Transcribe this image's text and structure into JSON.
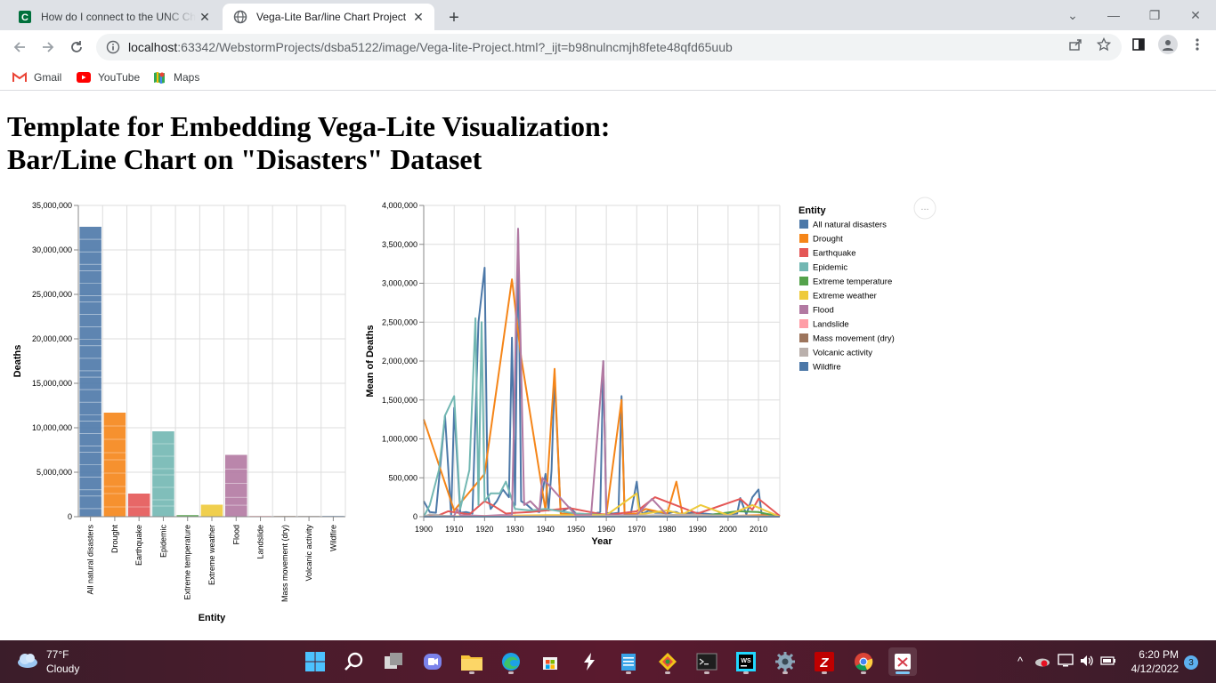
{
  "browser": {
    "tabs": [
      {
        "title": "How do I connect to the UNC Charlotte",
        "active": false
      },
      {
        "title": "Vega-Lite Bar/line Chart Project",
        "active": true
      }
    ],
    "url_host": "localhost",
    "url_rest": ":63342/WebstormProjects/dsba5122/image/Vega-lite-Project.html?_ijt=b98nulncmjh8fete48qfd65uub",
    "bookmarks": [
      "Gmail",
      "YouTube",
      "Maps"
    ]
  },
  "page": {
    "title_line1": "Template for Embedding Vega-Lite Visualization:",
    "title_line2": "Bar/Line Chart on \"Disasters\" Dataset",
    "actions_label": "..."
  },
  "colors": {
    "All natural disasters": "#4c78a8",
    "Drought": "#f58518",
    "Earthquake": "#e45756",
    "Epidemic": "#72b7b2",
    "Extreme temperature": "#54a24b",
    "Extreme weather": "#eeca3b",
    "Flood": "#b279a2",
    "Landslide": "#ff9da6",
    "Mass movement (dry)": "#9d755d",
    "Volcanic activity": "#bab0ac",
    "Wildfire": "#4c78a8"
  },
  "chart_data": [
    {
      "type": "bar",
      "title": "",
      "xlabel": "Entity",
      "ylabel": "Deaths",
      "ylim": [
        0,
        35000000
      ],
      "yticks": [
        "0",
        "5,000,000",
        "10,000,000",
        "15,000,000",
        "20,000,000",
        "25,000,000",
        "30,000,000",
        "35,000,000"
      ],
      "categories": [
        "All natural disasters",
        "Drought",
        "Earthquake",
        "Epidemic",
        "Extreme temperature",
        "Extreme weather",
        "Flood",
        "Landslide",
        "Mass movement (dry)",
        "Volcanic activity",
        "Wildfire"
      ],
      "values": [
        32600000,
        11700000,
        2600000,
        9600000,
        180000,
        1350000,
        6950000,
        60000,
        5000,
        95000,
        4000
      ],
      "grid": true
    },
    {
      "type": "line",
      "title": "",
      "xlabel": "Year",
      "ylabel": "Mean of Deaths",
      "xlim": [
        1900,
        2017
      ],
      "ylim": [
        0,
        4000000
      ],
      "xticks": [
        "1900",
        "1910",
        "1920",
        "1930",
        "1940",
        "1950",
        "1960",
        "1970",
        "1980",
        "1990",
        "2000",
        "2010"
      ],
      "yticks": [
        "0",
        "500,000",
        "1,000,000",
        "1,500,000",
        "2,000,000",
        "2,500,000",
        "3,000,000",
        "3,500,000",
        "4,000,000"
      ],
      "legend_title": "Entity",
      "legend_position": "right",
      "grid": true,
      "series": [
        {
          "name": "All natural disasters",
          "x": [
            1900,
            1902,
            1904,
            1907,
            1909,
            1910,
            1912,
            1914,
            1916,
            1918,
            1920,
            1921,
            1922,
            1924,
            1926,
            1928,
            1929,
            1930,
            1931,
            1932,
            1934,
            1936,
            1938,
            1940,
            1941,
            1942,
            1943,
            1945,
            1948,
            1950,
            1955,
            1958,
            1959,
            1960,
            1962,
            1964,
            1965,
            1966,
            1968,
            1970,
            1971,
            1972,
            1974,
            1976,
            1978,
            1980,
            1982,
            1983,
            1984,
            1986,
            1988,
            1990,
            1992,
            1995,
            1998,
            2000,
            2003,
            2004,
            2006,
            2008,
            2010,
            2011,
            2013,
            2015,
            2017
          ],
          "y": [
            200000,
            60000,
            50000,
            1300000,
            20000,
            1400000,
            50000,
            60000,
            40000,
            2500000,
            3200000,
            300000,
            100000,
            200000,
            350000,
            250000,
            2300000,
            150000,
            3700000,
            200000,
            150000,
            80000,
            60000,
            550000,
            80000,
            600000,
            1800000,
            60000,
            120000,
            40000,
            30000,
            60000,
            2000000,
            50000,
            40000,
            50000,
            1550000,
            40000,
            30000,
            450000,
            100000,
            40000,
            80000,
            50000,
            50000,
            40000,
            60000,
            60000,
            40000,
            40000,
            50000,
            50000,
            40000,
            30000,
            40000,
            30000,
            40000,
            240000,
            30000,
            250000,
            350000,
            40000,
            30000,
            30000,
            10000
          ]
        },
        {
          "name": "Drought",
          "x": [
            1900,
            1910,
            1920,
            1929,
            1932,
            1940,
            1943,
            1945,
            1960,
            1965,
            1966,
            1970,
            1973,
            1980,
            1983,
            1985,
            2000,
            2011,
            2017
          ],
          "y": [
            1250000,
            80000,
            550000,
            3050000,
            2050000,
            80000,
            1900000,
            40000,
            30000,
            1500000,
            30000,
            40000,
            100000,
            40000,
            450000,
            30000,
            10000,
            20000,
            5000
          ]
        },
        {
          "name": "Earthquake",
          "x": [
            1900,
            1905,
            1908,
            1915,
            1920,
            1923,
            1927,
            1930,
            1935,
            1948,
            1960,
            1970,
            1976,
            1990,
            2004,
            2008,
            2010,
            2017
          ],
          "y": [
            10000,
            20000,
            70000,
            30000,
            200000,
            140000,
            40000,
            50000,
            60000,
            110000,
            20000,
            70000,
            250000,
            40000,
            230000,
            90000,
            230000,
            10000
          ]
        },
        {
          "name": "Epidemic",
          "x": [
            1900,
            1902,
            1905,
            1907,
            1910,
            1912,
            1915,
            1917,
            1918,
            1919,
            1920,
            1922,
            1925,
            1927,
            1930,
            1935,
            1940,
            1950,
            1960,
            1970,
            2017
          ],
          "y": [
            0,
            150000,
            600000,
            1300000,
            1550000,
            100000,
            600000,
            2550000,
            150000,
            2500000,
            200000,
            300000,
            300000,
            450000,
            100000,
            80000,
            100000,
            40000,
            20000,
            10000,
            0
          ]
        },
        {
          "name": "Extreme temperature",
          "x": [
            1900,
            1960,
            1970,
            1990,
            2003,
            2010,
            2017
          ],
          "y": [
            0,
            0,
            0,
            0,
            70000,
            60000,
            0
          ]
        },
        {
          "name": "Extreme weather",
          "x": [
            1900,
            1920,
            1940,
            1960,
            1970,
            1971,
            1980,
            1985,
            1991,
            2000,
            2008,
            2017
          ],
          "y": [
            0,
            10000,
            20000,
            20000,
            300000,
            30000,
            80000,
            30000,
            150000,
            20000,
            150000,
            0
          ]
        },
        {
          "name": "Flood",
          "x": [
            1900,
            1910,
            1911,
            1912,
            1920,
            1925,
            1929,
            1931,
            1933,
            1935,
            1938,
            1939,
            1950,
            1955,
            1959,
            1960,
            1970,
            1975,
            1980,
            1990,
            2000,
            2017
          ],
          "y": [
            0,
            10000,
            100000,
            20000,
            10000,
            20000,
            20000,
            3700000,
            150000,
            200000,
            80000,
            500000,
            20000,
            20000,
            2000000,
            20000,
            20000,
            230000,
            20000,
            10000,
            10000,
            0
          ]
        },
        {
          "name": "Landslide",
          "x": [
            1900,
            1920,
            1950,
            1985,
            2017
          ],
          "y": [
            0,
            5000,
            5000,
            20000,
            0
          ]
        },
        {
          "name": "Mass movement (dry)",
          "x": [
            1900,
            2017
          ],
          "y": [
            0,
            0
          ]
        },
        {
          "name": "Volcanic activity",
          "x": [
            1900,
            1902,
            1910,
            1950,
            1985,
            2017
          ],
          "y": [
            0,
            30000,
            0,
            0,
            25000,
            0
          ]
        },
        {
          "name": "Wildfire",
          "x": [
            1900,
            2017
          ],
          "y": [
            0,
            0
          ]
        }
      ]
    }
  ],
  "taskbar": {
    "temperature": "77°F",
    "condition": "Cloudy",
    "time": "6:20 PM",
    "date": "4/12/2022",
    "notifications": "3"
  }
}
